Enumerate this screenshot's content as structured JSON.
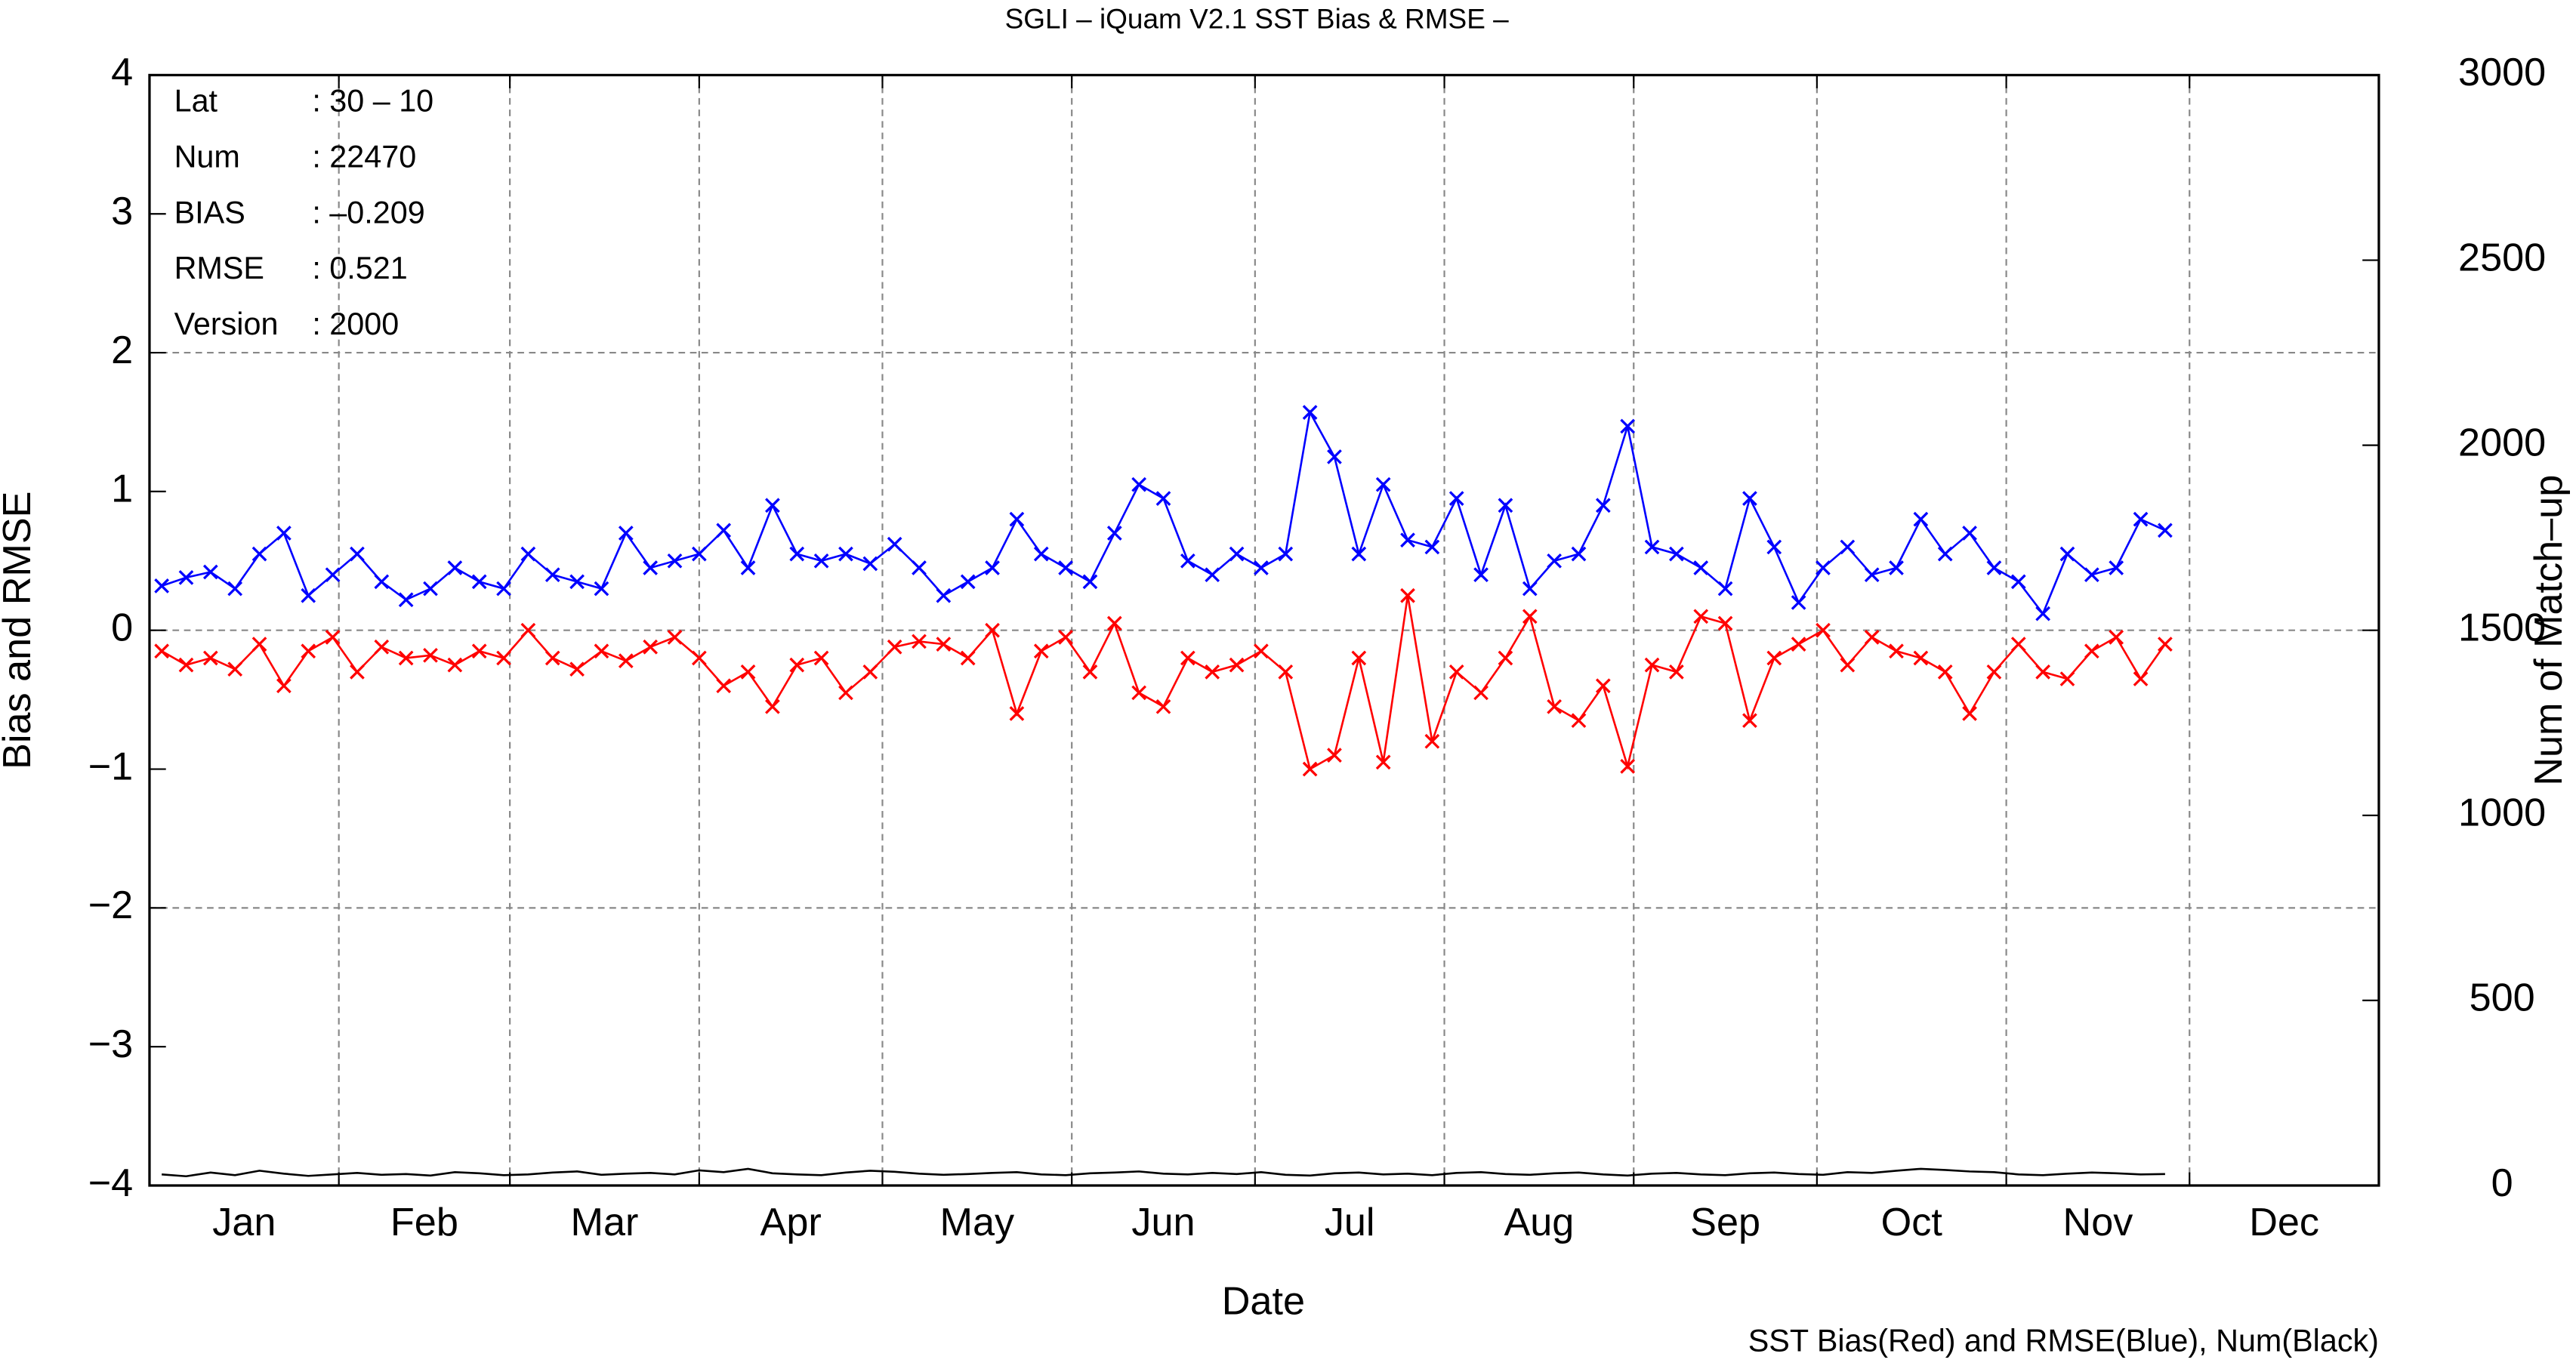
{
  "chart_data": {
    "type": "line",
    "title": "SGLI – iQuam V2.1 SST Bias & RMSE  –",
    "xlabel": "Date",
    "ylabel": "Bias and RMSE",
    "y2label": "Num of Match–up",
    "footnote": "SST Bias(Red) and RMSE(Blue), Num(Black)",
    "info": [
      [
        "Lat",
        ": 30 – 10"
      ],
      [
        "Num",
        ": 22470"
      ],
      [
        "BIAS",
        ": –0.209"
      ],
      [
        "RMSE",
        ": 0.521"
      ],
      [
        "Version",
        ": 2000"
      ]
    ],
    "xlim": [
      0,
      365
    ],
    "xticks": [
      {
        "value": 15.5,
        "label": "Jan"
      },
      {
        "value": 45,
        "label": "Feb"
      },
      {
        "value": 74.5,
        "label": "Mar"
      },
      {
        "value": 105,
        "label": "Apr"
      },
      {
        "value": 135.5,
        "label": "May"
      },
      {
        "value": 166,
        "label": "Jun"
      },
      {
        "value": 196.5,
        "label": "Jul"
      },
      {
        "value": 227.5,
        "label": "Aug"
      },
      {
        "value": 258,
        "label": "Sep"
      },
      {
        "value": 288.5,
        "label": "Oct"
      },
      {
        "value": 319,
        "label": "Nov"
      },
      {
        "value": 349.5,
        "label": "Dec"
      }
    ],
    "xgrid": [
      31,
      59,
      90,
      120,
      151,
      181,
      212,
      243,
      273,
      304,
      334
    ],
    "ylim": [
      -4,
      4
    ],
    "yticks": [
      {
        "value": -4,
        "label": "−4"
      },
      {
        "value": -3,
        "label": "−3"
      },
      {
        "value": -2,
        "label": "−2"
      },
      {
        "value": -1,
        "label": "−1"
      },
      0,
      1,
      2,
      3,
      4
    ],
    "ygrid": [
      -2,
      0,
      2
    ],
    "y2lim": [
      0,
      3000
    ],
    "y2ticks": [
      0,
      500,
      1000,
      1500,
      2000,
      2500,
      3000
    ],
    "x": [
      2,
      6,
      10,
      14,
      18,
      22,
      26,
      30,
      34,
      38,
      42,
      46,
      50,
      54,
      58,
      62,
      66,
      70,
      74,
      78,
      82,
      86,
      90,
      94,
      98,
      102,
      106,
      110,
      114,
      118,
      122,
      126,
      130,
      134,
      138,
      142,
      146,
      150,
      154,
      158,
      162,
      166,
      170,
      174,
      178,
      182,
      186,
      190,
      194,
      198,
      202,
      206,
      210,
      214,
      218,
      222,
      226,
      230,
      234,
      238,
      242,
      246,
      250,
      254,
      258,
      262,
      266,
      270,
      274,
      278,
      282,
      286,
      290,
      294,
      298,
      302,
      306,
      310,
      314,
      318,
      322,
      326,
      330
    ],
    "series": [
      {
        "name": "RMSE",
        "color": "#0000ff",
        "marker": true,
        "values": [
          0.32,
          0.38,
          0.42,
          0.3,
          0.55,
          0.7,
          0.25,
          0.4,
          0.55,
          0.35,
          0.22,
          0.3,
          0.45,
          0.35,
          0.3,
          0.55,
          0.4,
          0.35,
          0.3,
          0.7,
          0.45,
          0.5,
          0.55,
          0.72,
          0.45,
          0.9,
          0.55,
          0.5,
          0.55,
          0.48,
          0.62,
          0.45,
          0.25,
          0.35,
          0.45,
          0.8,
          0.55,
          0.45,
          0.35,
          0.7,
          1.05,
          0.95,
          0.5,
          0.4,
          0.55,
          0.45,
          0.55,
          1.57,
          1.25,
          0.55,
          1.05,
          0.65,
          0.6,
          0.95,
          0.4,
          0.9,
          0.3,
          0.5,
          0.55,
          0.9,
          1.47,
          0.6,
          0.55,
          0.45,
          0.3,
          0.95,
          0.6,
          0.2,
          0.45,
          0.6,
          0.4,
          0.45,
          0.8,
          0.55,
          0.7,
          0.45,
          0.35,
          0.12,
          0.55,
          0.4,
          0.45,
          0.8,
          0.72
        ]
      },
      {
        "name": "Bias",
        "color": "#ff0000",
        "marker": true,
        "values": [
          -0.15,
          -0.25,
          -0.2,
          -0.28,
          -0.1,
          -0.4,
          -0.15,
          -0.05,
          -0.3,
          -0.12,
          -0.2,
          -0.18,
          -0.25,
          -0.15,
          -0.2,
          0,
          -0.2,
          -0.28,
          -0.15,
          -0.22,
          -0.12,
          -0.05,
          -0.2,
          -0.4,
          -0.3,
          -0.55,
          -0.25,
          -0.2,
          -0.45,
          -0.3,
          -0.12,
          -0.08,
          -0.1,
          -0.2,
          0,
          -0.6,
          -0.15,
          -0.05,
          -0.3,
          0.05,
          -0.45,
          -0.55,
          -0.2,
          -0.3,
          -0.25,
          -0.15,
          -0.3,
          -1.0,
          -0.9,
          -0.2,
          -0.95,
          0.25,
          -0.8,
          -0.3,
          -0.45,
          -0.2,
          0.1,
          -0.55,
          -0.65,
          -0.4,
          -0.98,
          -0.25,
          -0.3,
          0.1,
          0.05,
          -0.65,
          -0.2,
          -0.1,
          0,
          -0.25,
          -0.05,
          -0.15,
          -0.2,
          -0.3,
          -0.6,
          -0.3,
          -0.1,
          -0.3,
          -0.35,
          -0.15,
          -0.05,
          -0.35,
          -0.1
        ]
      },
      {
        "name": "Num",
        "color": "#000000",
        "marker": false,
        "axis": "y2",
        "values": [
          30,
          25,
          35,
          28,
          40,
          32,
          26,
          30,
          34,
          29,
          31,
          27,
          36,
          33,
          28,
          30,
          35,
          38,
          29,
          32,
          34,
          30,
          41,
          36,
          45,
          33,
          30,
          28,
          35,
          40,
          37,
          32,
          29,
          31,
          34,
          36,
          30,
          28,
          33,
          35,
          38,
          32,
          30,
          34,
          31,
          36,
          29,
          27,
          33,
          35,
          30,
          32,
          28,
          34,
          36,
          31,
          29,
          33,
          35,
          30,
          27,
          32,
          34,
          30,
          28,
          33,
          35,
          31,
          29,
          36,
          34,
          40,
          45,
          42,
          38,
          36,
          30,
          28,
          32,
          35,
          33,
          30,
          31
        ]
      }
    ]
  }
}
